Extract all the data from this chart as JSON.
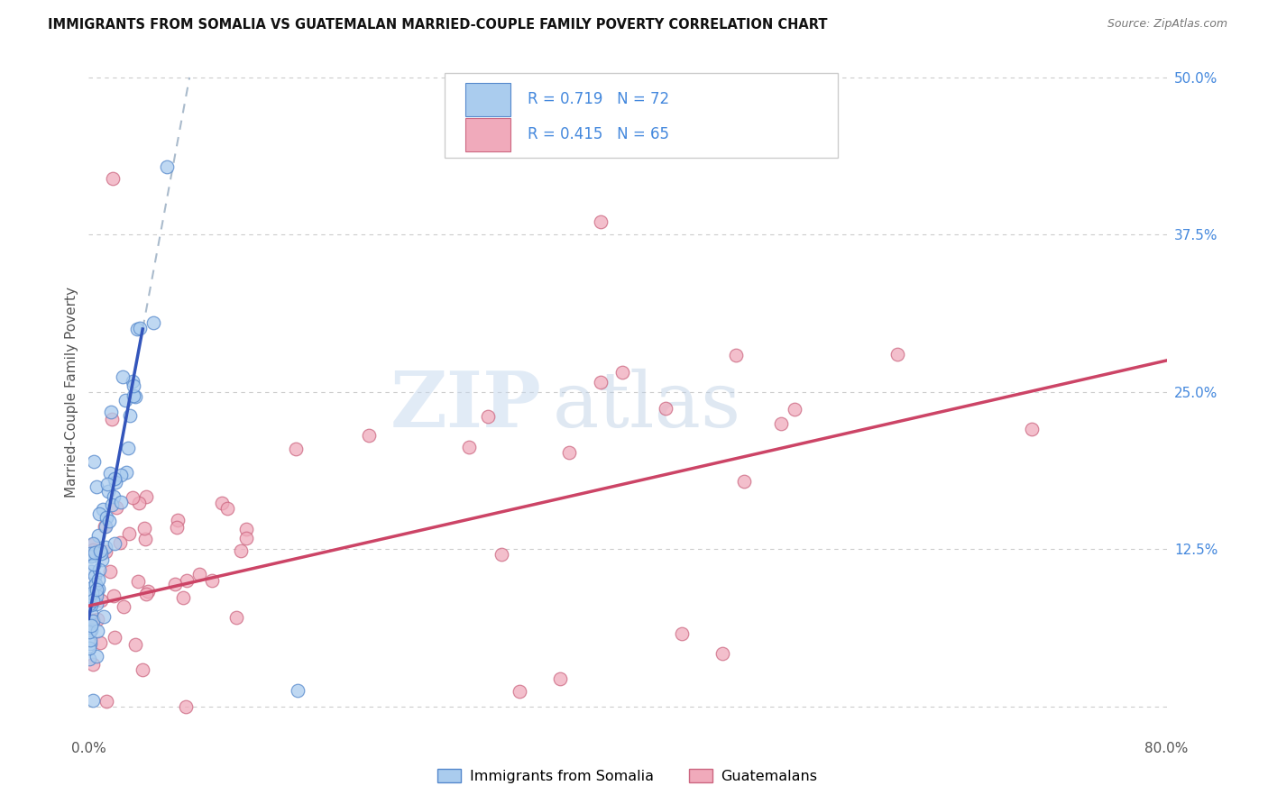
{
  "title": "IMMIGRANTS FROM SOMALIA VS GUATEMALAN MARRIED-COUPLE FAMILY POVERTY CORRELATION CHART",
  "source": "Source: ZipAtlas.com",
  "ylabel": "Married-Couple Family Poverty",
  "xmin": 0.0,
  "xmax": 0.8,
  "ymin": -0.02,
  "ymax": 0.52,
  "xtick_positions": [
    0.0,
    0.16,
    0.32,
    0.48,
    0.64,
    0.8
  ],
  "xtick_labels": [
    "0.0%",
    "",
    "",
    "",
    "",
    "80.0%"
  ],
  "ytick_vals": [
    0.0,
    0.125,
    0.25,
    0.375,
    0.5
  ],
  "ytick_labels": [
    "",
    "12.5%",
    "25.0%",
    "37.5%",
    "50.0%"
  ],
  "somalia_color": "#aaccee",
  "somalia_edge": "#5588cc",
  "guatemalan_color": "#f0aabb",
  "guatemalan_edge": "#cc6680",
  "trend_somalia_color": "#3355bb",
  "trend_guatemalan_color": "#cc4466",
  "trend_dashed_color": "#aabbcc",
  "legend_title_somalia": "Immigrants from Somalia",
  "legend_title_guatemalan": "Guatemalans",
  "watermark_zip": "ZIP",
  "watermark_atlas": "atlas",
  "background_color": "#ffffff",
  "grid_color": "#cccccc",
  "label_color": "#4488dd",
  "title_color": "#111111",
  "source_color": "#777777",
  "somalia_seed": 42,
  "guatemalan_seed": 99
}
